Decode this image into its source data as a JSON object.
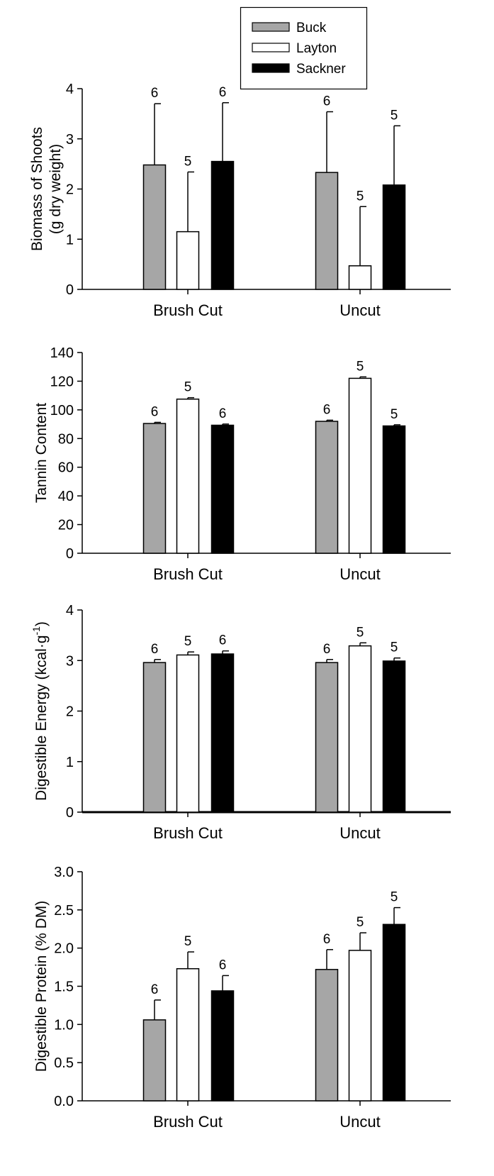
{
  "legend": {
    "entries": [
      {
        "name": "Buck",
        "color": "#a6a6a6"
      },
      {
        "name": "Layton",
        "color": "#ffffff"
      },
      {
        "name": "Sackner",
        "color": "#000000"
      }
    ],
    "placement": "top"
  },
  "chart_data": [
    {
      "type": "bar",
      "categories": [
        "Brush Cut",
        "Uncut"
      ],
      "ylabel": [
        "Biomass of Shoots",
        "(g dry weight)"
      ],
      "ylim": [
        0,
        4
      ],
      "yticks": [
        0,
        1,
        2,
        3,
        4
      ],
      "yticklabels": [
        "0",
        "1",
        "2",
        "3",
        "4"
      ],
      "errorbars": "upper",
      "series": [
        {
          "name": "Buck",
          "color": "#a6a6a6",
          "values": [
            2.48,
            2.33
          ],
          "errors": [
            1.22,
            1.21
          ],
          "n": [
            "6",
            "6"
          ]
        },
        {
          "name": "Layton",
          "color": "#ffffff",
          "values": [
            1.15,
            0.47
          ],
          "errors": [
            1.19,
            1.18
          ],
          "n": [
            "5",
            "5"
          ]
        },
        {
          "name": "Sackner",
          "color": "#000000",
          "values": [
            2.55,
            2.08
          ],
          "errors": [
            1.17,
            1.18
          ],
          "n": [
            "6",
            "5"
          ]
        }
      ]
    },
    {
      "type": "bar",
      "categories": [
        "Brush Cut",
        "Uncut"
      ],
      "ylabel": [
        "Tannin Content"
      ],
      "ylim": [
        0,
        140
      ],
      "yticks": [
        0,
        20,
        40,
        60,
        80,
        100,
        120,
        140
      ],
      "yticklabels": [
        "0",
        "20",
        "40",
        "60",
        "80",
        "100",
        "120",
        "140"
      ],
      "errorbars": "upper",
      "series": [
        {
          "name": "Buck",
          "color": "#a6a6a6",
          "values": [
            90.5,
            92.0
          ],
          "errors": [
            0.8,
            0.8
          ],
          "n": [
            "6",
            "6"
          ]
        },
        {
          "name": "Layton",
          "color": "#ffffff",
          "values": [
            107.5,
            122.0
          ],
          "errors": [
            1.0,
            1.0
          ],
          "n": [
            "5",
            "5"
          ]
        },
        {
          "name": "Sackner",
          "color": "#000000",
          "values": [
            89.3,
            88.8
          ],
          "errors": [
            0.8,
            0.8
          ],
          "n": [
            "6",
            "5"
          ]
        }
      ]
    },
    {
      "type": "bar",
      "categories": [
        "Brush Cut",
        "Uncut"
      ],
      "ylabel": [
        "Digestible Energy (kcal·g",
        "-1",
        ")"
      ],
      "ylim": [
        0,
        4
      ],
      "yticks": [
        0,
        1,
        2,
        3,
        4
      ],
      "yticklabels": [
        "0",
        "1",
        "2",
        "3",
        "4"
      ],
      "errorbars": "upper",
      "series": [
        {
          "name": "Buck",
          "color": "#a6a6a6",
          "values": [
            2.96,
            2.96
          ],
          "errors": [
            0.06,
            0.06
          ],
          "n": [
            "6",
            "6"
          ]
        },
        {
          "name": "Layton",
          "color": "#ffffff",
          "values": [
            3.11,
            3.29
          ],
          "errors": [
            0.06,
            0.06
          ],
          "n": [
            "5",
            "5"
          ]
        },
        {
          "name": "Sackner",
          "color": "#000000",
          "values": [
            3.13,
            2.99
          ],
          "errors": [
            0.06,
            0.06
          ],
          "n": [
            "6",
            "5"
          ]
        }
      ]
    },
    {
      "type": "bar",
      "categories": [
        "Brush Cut",
        "Uncut"
      ],
      "ylabel": [
        "Digestible Protein (% DM)"
      ],
      "ylim": [
        0,
        3
      ],
      "yticks": [
        0,
        0.5,
        1,
        1.5,
        2,
        2.5,
        3
      ],
      "yticklabels": [
        "0.0",
        "0.5",
        "1.0",
        "1.5",
        "2.0",
        "2.5",
        "3.0"
      ],
      "errorbars": "upper",
      "series": [
        {
          "name": "Buck",
          "color": "#a6a6a6",
          "values": [
            1.06,
            1.72
          ],
          "errors": [
            0.26,
            0.26
          ],
          "n": [
            "6",
            "6"
          ]
        },
        {
          "name": "Layton",
          "color": "#ffffff",
          "values": [
            1.73,
            1.97
          ],
          "errors": [
            0.22,
            0.23
          ],
          "n": [
            "5",
            "5"
          ]
        },
        {
          "name": "Sackner",
          "color": "#000000",
          "values": [
            1.44,
            2.31
          ],
          "errors": [
            0.2,
            0.22
          ],
          "n": [
            "6",
            "5"
          ]
        }
      ]
    }
  ]
}
